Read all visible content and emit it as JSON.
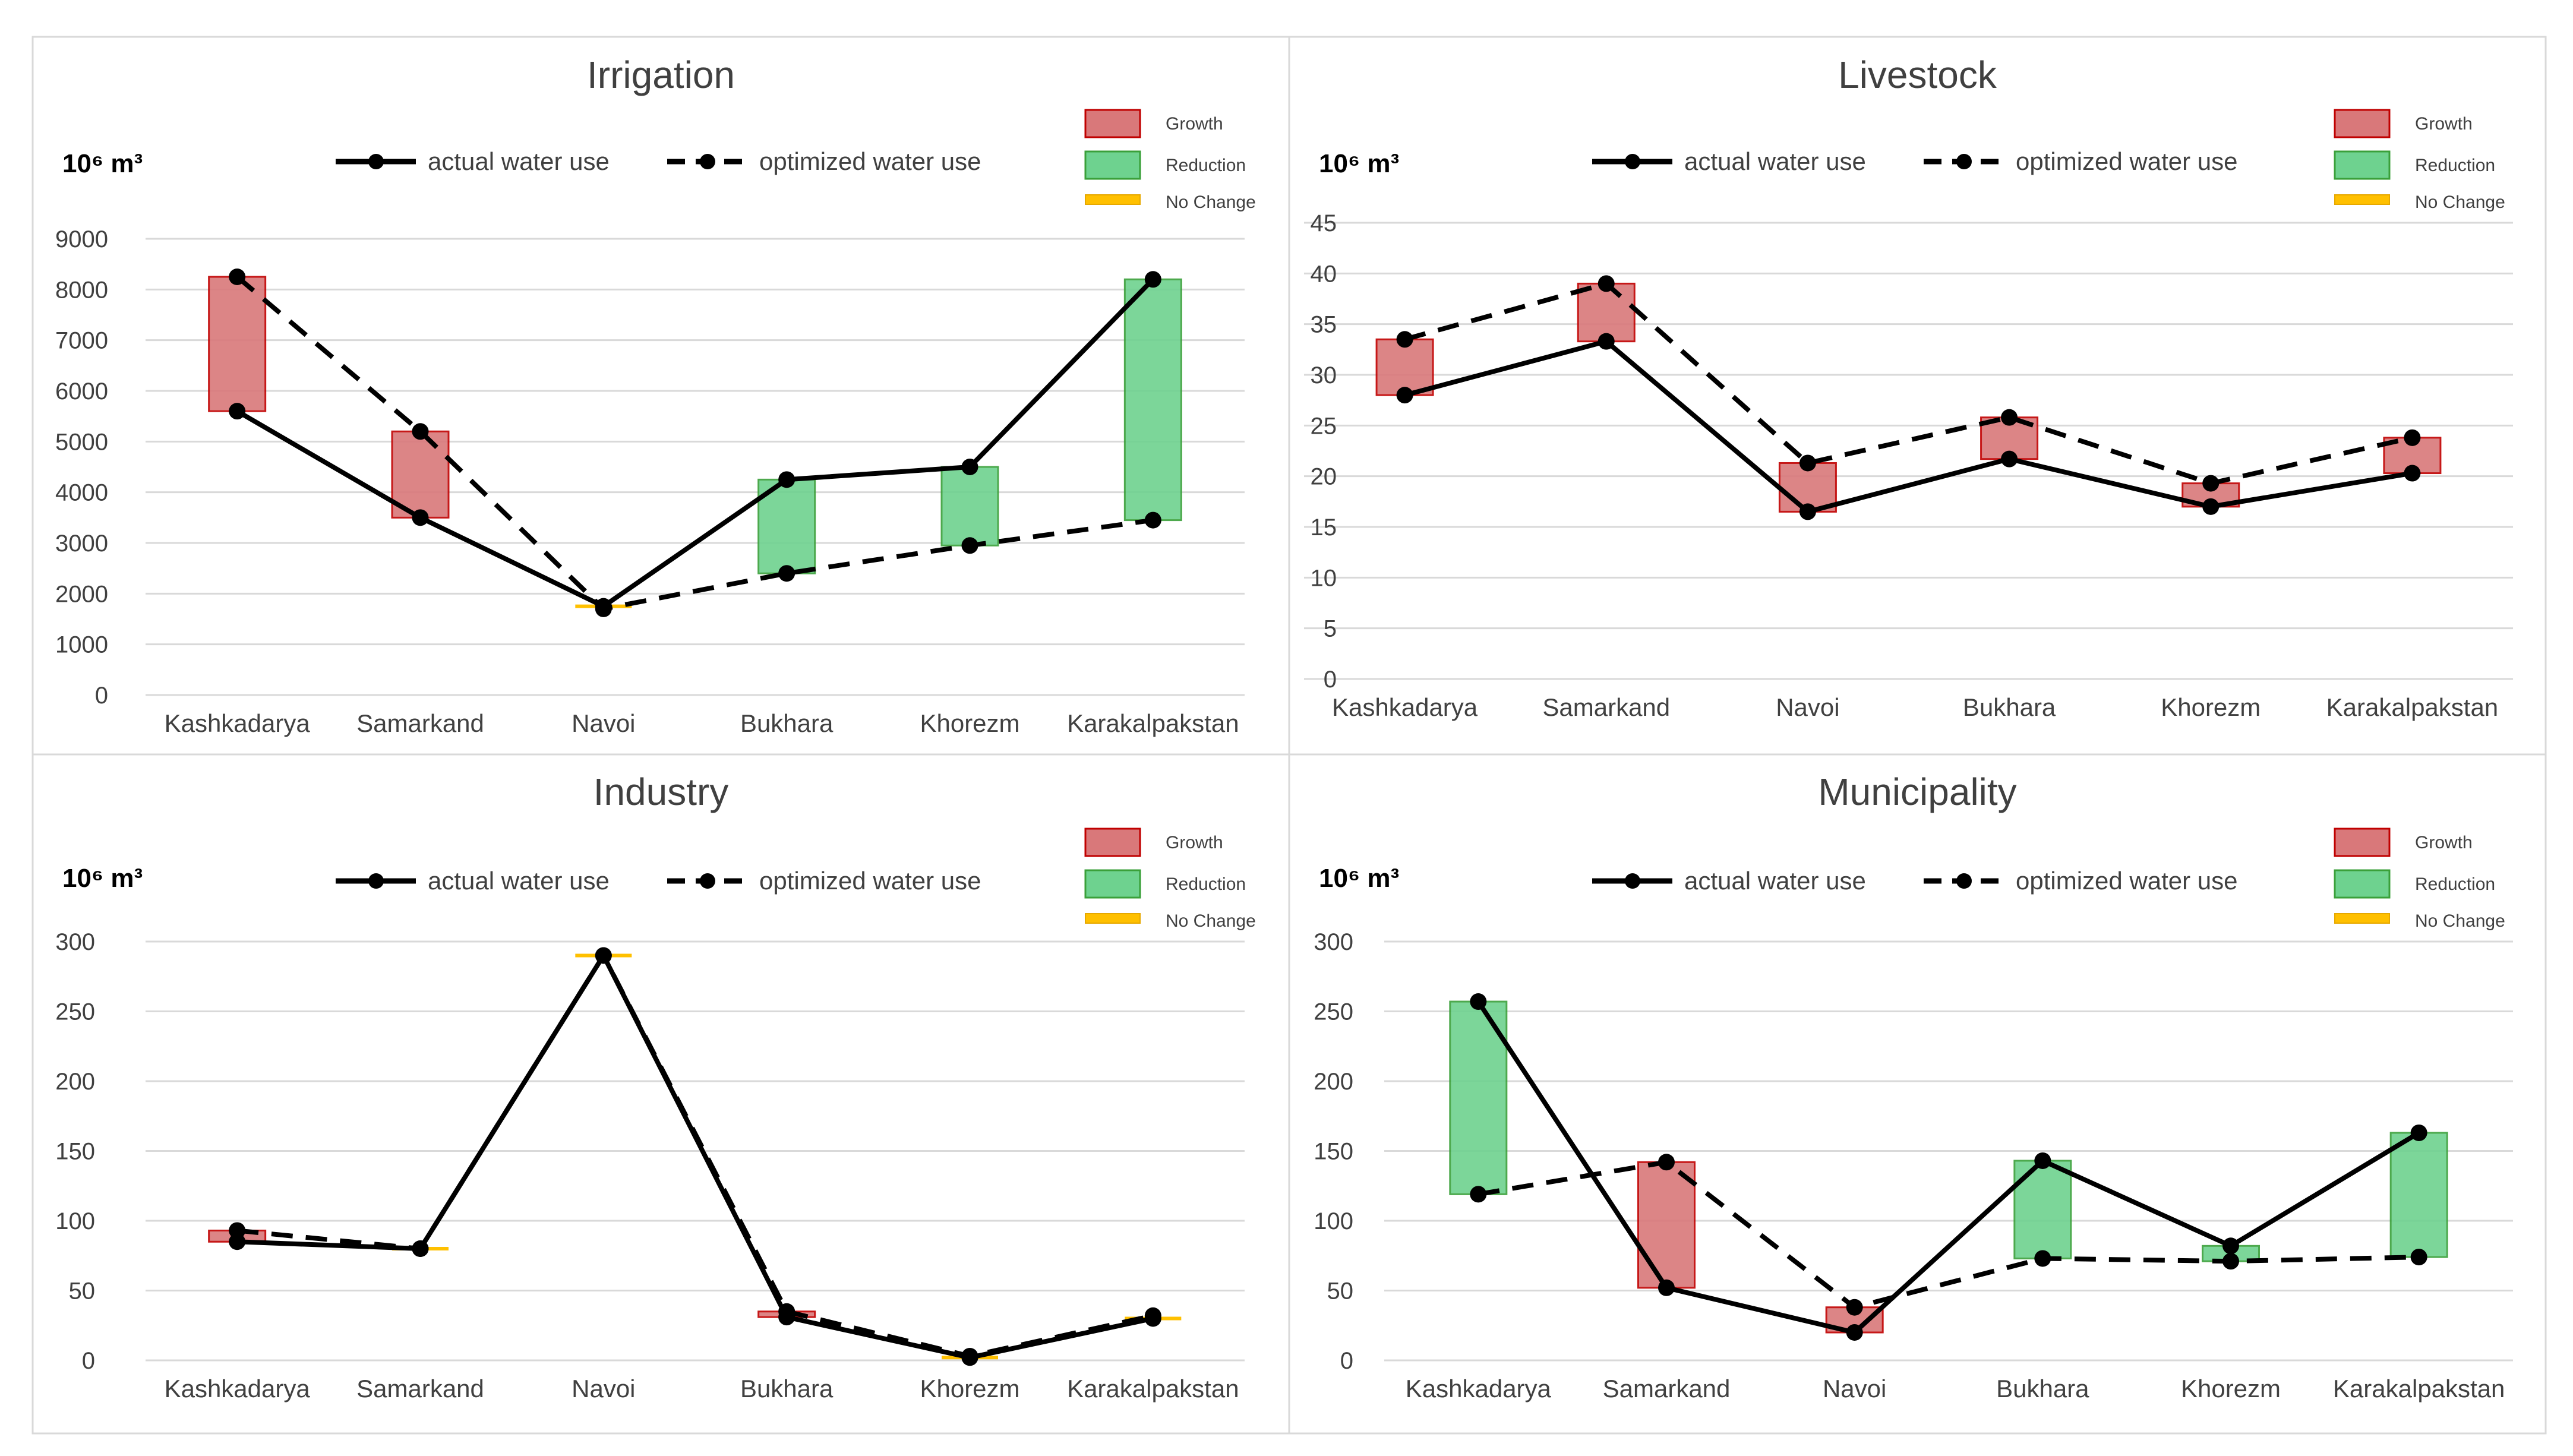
{
  "figure": {
    "panel_border_color": "#d9d9d9",
    "grid_color": "#d9d9d9",
    "text_color": "#404040"
  },
  "legend_common": {
    "actual_label": "actual water use",
    "optimized_label": "optimized water use",
    "growth_label": "Growth",
    "reduction_label": "Reduction",
    "nochange_label": "No Change",
    "unit_label": "10⁶ m³",
    "growth_color": "#d9787a",
    "growth_edge": "#c00000",
    "reduction_color": "#6ed28f",
    "reduction_edge": "#3aa03a",
    "nochange_color": "#ffc000"
  },
  "chart_data": [
    {
      "type": "line",
      "title": "Irrigation",
      "ylabel": "10⁶ m³",
      "ylim": [
        0,
        9000
      ],
      "yticks": [
        0,
        1000,
        2000,
        3000,
        4000,
        5000,
        6000,
        7000,
        8000,
        9000
      ],
      "categories": [
        "Kashkadarya",
        "Samarkand",
        "Navoi",
        "Bukhara",
        "Khorezm",
        "Karakalpakstan"
      ],
      "series": [
        {
          "name": "actual water use",
          "values": [
            5600,
            3500,
            1750,
            4250,
            4500,
            8200
          ]
        },
        {
          "name": "optimized water use",
          "values": [
            8250,
            5200,
            1700,
            2400,
            2950,
            3450
          ]
        }
      ],
      "legend": "top-right"
    },
    {
      "type": "line",
      "title": "Livestock",
      "ylabel": "10⁶ m³",
      "ylim": [
        0,
        45
      ],
      "yticks": [
        0,
        5,
        10,
        15,
        20,
        25,
        30,
        35,
        40,
        45
      ],
      "categories": [
        "Kashkadarya",
        "Samarkand",
        "Navoi",
        "Bukhara",
        "Khorezm",
        "Karakalpakstan"
      ],
      "series": [
        {
          "name": "actual water use",
          "values": [
            28,
            33.3,
            16.5,
            21.7,
            17,
            20.3
          ]
        },
        {
          "name": "optimized water use",
          "values": [
            33.5,
            39,
            21.3,
            25.8,
            19.3,
            23.8
          ]
        }
      ],
      "legend": "top-right"
    },
    {
      "type": "line",
      "title": "Industry",
      "ylabel": "10⁶ m³",
      "ylim": [
        0,
        300
      ],
      "yticks": [
        0,
        50,
        100,
        150,
        200,
        250,
        300
      ],
      "categories": [
        "Kashkadarya",
        "Samarkand",
        "Navoi",
        "Bukhara",
        "Khorezm",
        "Karakalpakstan"
      ],
      "series": [
        {
          "name": "actual water use",
          "values": [
            85,
            80,
            290,
            31,
            2,
            30
          ]
        },
        {
          "name": "optimized water use",
          "values": [
            93,
            80,
            290,
            35,
            3,
            32
          ]
        }
      ],
      "legend": "top-right"
    },
    {
      "type": "line",
      "title": "Municipality",
      "ylabel": "10⁶ m³",
      "ylim": [
        0,
        300
      ],
      "yticks": [
        0,
        50,
        100,
        150,
        200,
        250,
        300
      ],
      "categories": [
        "Kashkadarya",
        "Samarkand",
        "Navoi",
        "Bukhara",
        "Khorezm",
        "Karakalpakstan"
      ],
      "series": [
        {
          "name": "actual water use",
          "values": [
            257,
            52,
            20,
            143,
            82,
            163
          ]
        },
        {
          "name": "optimized water use",
          "values": [
            119,
            142,
            38,
            73,
            71,
            74
          ]
        }
      ],
      "legend": "top-right"
    }
  ]
}
